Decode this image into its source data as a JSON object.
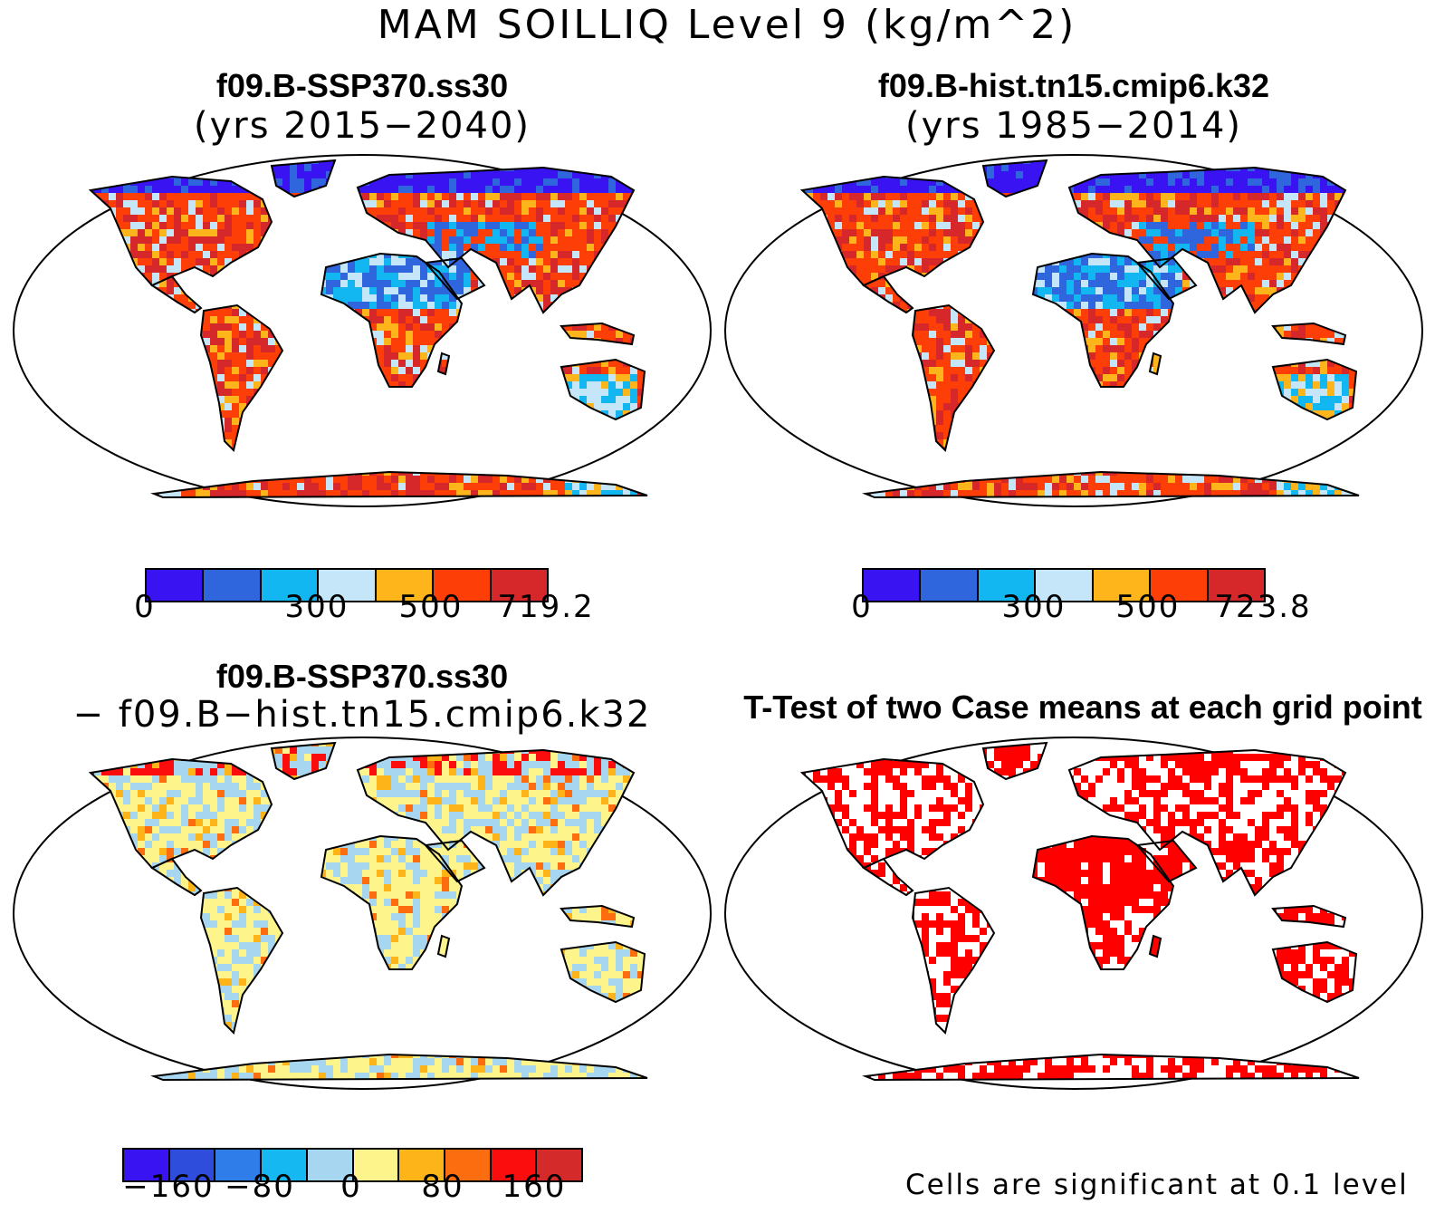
{
  "title": "MAM SOILLIQ Level 9 (kg/m^2)",
  "panels": [
    {
      "title": "f09.B-SSP370.ss30",
      "subtitle": "(yrs 2015−2040)",
      "fill": "case"
    },
    {
      "title": "f09.B-hist.tn15.cmip6.k32",
      "subtitle": "(yrs 1985−2014)",
      "fill": "case"
    },
    {
      "title": "f09.B-SSP370.ss30",
      "subtitle": "− f09.B−hist.tn15.cmip6.k32",
      "fill": "diff"
    },
    {
      "title": "T-Test of two Case means at each grid point",
      "subtitle": "",
      "fill": "ttest"
    }
  ],
  "colorbars": {
    "case1": {
      "colors": [
        "#3a13f3",
        "#3066dd",
        "#12b6f0",
        "#c4e6f8",
        "#feb51c",
        "#fe3e07",
        "#d6282b"
      ],
      "labels": [
        "0",
        "300",
        "500",
        "719.2"
      ]
    },
    "case2": {
      "colors": [
        "#3a13f3",
        "#3066dd",
        "#12b6f0",
        "#c4e6f8",
        "#feb51c",
        "#fe3e07",
        "#d6282b"
      ],
      "labels": [
        "0",
        "300",
        "500",
        "723.8"
      ]
    },
    "diff": {
      "colors": [
        "#3a13f3",
        "#2e4ddd",
        "#2e7de8",
        "#15b8f1",
        "#a7d6f0",
        "#fdf58b",
        "#fcb419",
        "#fb6d0f",
        "#fb0d0d",
        "#d42a2a"
      ],
      "labels": [
        "−160",
        "−80",
        "0",
        "80",
        "160"
      ]
    }
  },
  "footnote": "Cells are significant at 0.1 level",
  "significance_color": "#ff0000",
  "ocean_color": "#ffffff"
}
